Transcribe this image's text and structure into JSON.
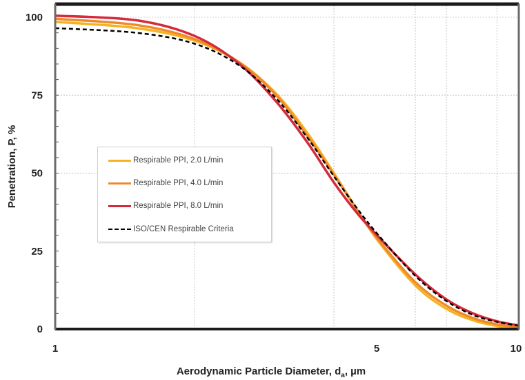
{
  "chart_data": {
    "type": "line",
    "title": "",
    "xlabel": "Aerodynamic Particle Diameter, d_a, µm",
    "xlabel_main": "Aerodynamic Particle Diameter, d",
    "xlabel_sub": "a",
    "xlabel_unit": ", µm",
    "ylabel": "Penetration, P, %",
    "xscale": "log",
    "xlim": [
      1,
      10
    ],
    "ylim": [
      0,
      100
    ],
    "x_ticks": [
      1,
      5,
      10
    ],
    "x_tick_labels": [
      "1",
      "5",
      "10"
    ],
    "y_ticks": [
      0,
      25,
      50,
      75,
      100
    ],
    "y_tick_labels": [
      "0",
      "25",
      "50",
      "75",
      "100"
    ],
    "grid": true,
    "legend_position": "center-left",
    "x": [
      1.0,
      1.5,
      2.0,
      2.5,
      3.0,
      3.5,
      4.0,
      4.5,
      5.0,
      6.0,
      7.0,
      8.0,
      9.0,
      10.0
    ],
    "series": [
      {
        "name": "Respirable PPI, 2.0 L/min",
        "color": "#F5B323",
        "style": "solid",
        "values": [
          98.5,
          96.5,
          92.5,
          85.5,
          75.5,
          63.0,
          50.0,
          38.0,
          28.0,
          14.0,
          6.5,
          2.8,
          1.0,
          0.3
        ]
      },
      {
        "name": "Respirable PPI, 4.0 L/min",
        "color": "#EE8A2A",
        "style": "solid",
        "values": [
          99.5,
          97.5,
          93.0,
          85.5,
          75.0,
          62.0,
          49.5,
          38.0,
          28.5,
          15.0,
          7.5,
          3.5,
          1.5,
          0.6
        ]
      },
      {
        "name": "Respirable PPI, 8.0 L/min",
        "color": "#D42A3A",
        "style": "solid",
        "values": [
          100.5,
          99.0,
          94.0,
          85.0,
          73.0,
          60.0,
          47.0,
          37.0,
          29.5,
          17.5,
          9.5,
          5.0,
          2.5,
          1.2
        ]
      },
      {
        "name": "ISO/CEN Respirable Criteria",
        "color": "#000000",
        "style": "dashed",
        "values": [
          96.5,
          95.0,
          91.5,
          84.5,
          74.0,
          61.5,
          49.0,
          38.5,
          30.0,
          17.0,
          9.0,
          4.5,
          2.3,
          1.1
        ]
      }
    ],
    "legend": [
      {
        "label": "Respirable PPI, 2.0 L/min",
        "color": "#F5B323",
        "style": "solid"
      },
      {
        "label": "Respirable PPI, 4.0 L/min",
        "color": "#EE8A2A",
        "style": "solid"
      },
      {
        "label": "Respirable PPI, 8.0 L/min",
        "color": "#D42A3A",
        "style": "solid"
      },
      {
        "label": "ISO/CEN Respirable Criteria",
        "color": "#000000",
        "style": "dashed"
      }
    ],
    "minor_x_gridlines": [
      2,
      4,
      6,
      7,
      9
    ]
  }
}
